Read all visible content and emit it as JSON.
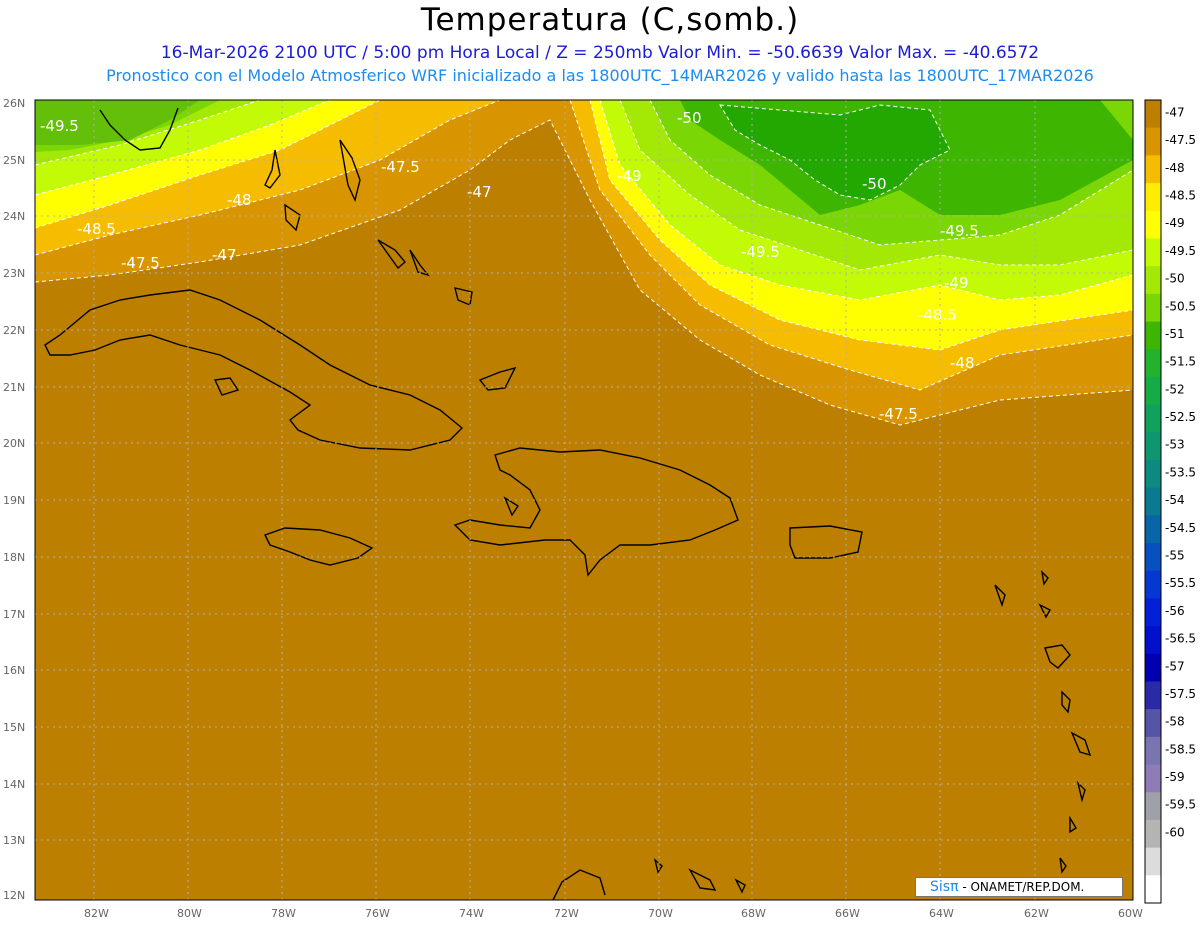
{
  "header": {
    "title": "Temperatura (C,somb.)",
    "line1": "16-Mar-2026  2100 UTC / 5:00 pm Hora Local / Z = 250mb  Valor Min. = -50.6639  Valor Max. = -40.6572",
    "line2": "Pronostico con el Modelo Atmosferico WRF inicializado a las 1800UTC_14MAR2026 y valido hasta las  1800UTC_17MAR2026"
  },
  "map": {
    "lat_labels": [
      "26N",
      "25N",
      "24N",
      "23N",
      "22N",
      "21N",
      "20N",
      "19N",
      "18N",
      "17N",
      "16N",
      "15N",
      "14N",
      "13N",
      "12N"
    ],
    "lon_labels": [
      "82W",
      "80W",
      "78W",
      "76W",
      "74W",
      "72W",
      "70W",
      "68W",
      "66W",
      "64W",
      "62W",
      "60W"
    ],
    "contour_labels": [
      "-49.5",
      "-50",
      "-49",
      "-50",
      "-47.5",
      "-47",
      "-48",
      "-48.5",
      "-47.5",
      "-47",
      "-49.5",
      "-49.5",
      "-49",
      "-48.5",
      "-48",
      "-47.5"
    ]
  },
  "colorbar": {
    "levels": [
      "-47",
      "-47.5",
      "-48",
      "-48.5",
      "-49",
      "-49.5",
      "-50",
      "-50.5",
      "-51",
      "-51.5",
      "-52",
      "-52.5",
      "-53",
      "-53.5",
      "-54",
      "-54.5",
      "-55",
      "-55.5",
      "-56",
      "-56.5",
      "-57",
      "-57.5",
      "-58",
      "-58.5",
      "-59",
      "-59.5",
      "-60"
    ],
    "colors": [
      "#bc7f00",
      "#d99500",
      "#f5bc00",
      "#ffec00",
      "#ffff00",
      "#c3fa05",
      "#a3e905",
      "#7ad705",
      "#3eb500",
      "#22b22b",
      "#16ab46",
      "#10a25a",
      "#0e9670",
      "#0c8a80",
      "#0a7a90",
      "#0866a8",
      "#0650c0",
      "#0438d0",
      "#0220d8",
      "#0010cc",
      "#0000b0",
      "#2a2aa8",
      "#5555a8",
      "#7a74b0",
      "#8e7cb8",
      "#a0a0a8",
      "#b4b4b4",
      "#dcdcdc",
      "#ffffff"
    ]
  },
  "credit": {
    "sis": "Sisπ",
    "text": "- ONAMET/REP.DOM."
  }
}
